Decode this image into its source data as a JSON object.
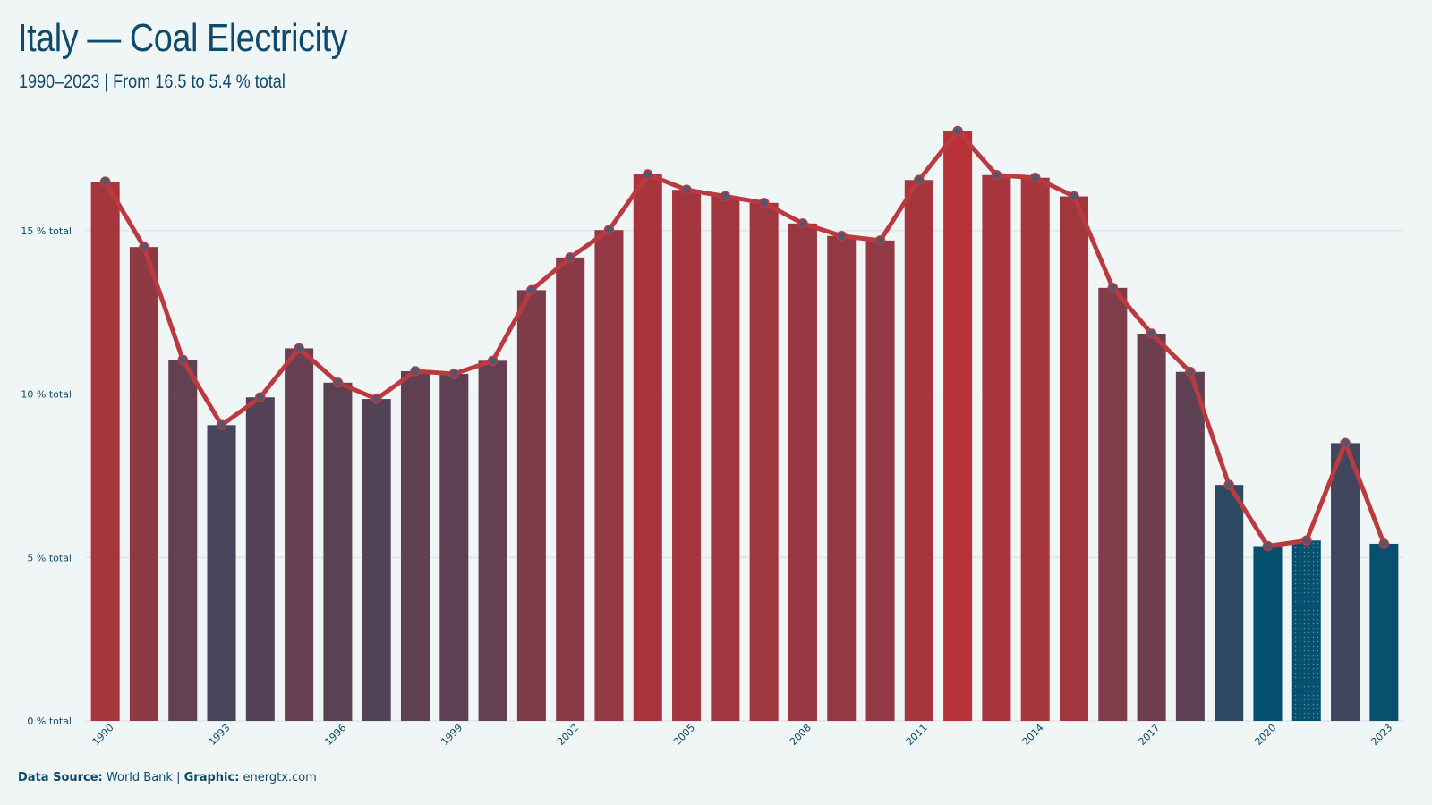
{
  "header": {
    "title": "Italy — Coal Electricity",
    "subtitle": "1990–2023 | From 16.5 to 5.4 % total"
  },
  "footer": {
    "source_label": "Data Source:",
    "source_value": "World Bank",
    "separator": "|",
    "graphic_label": "Graphic:",
    "graphic_value": "energtx.com"
  },
  "colors": {
    "high": "#b73338",
    "low": "#06506f",
    "line": "#bb3a3f",
    "marker_fill": "#56566e",
    "grid": "#d8e0e3",
    "text": "#0d4a6b"
  },
  "chart_data": {
    "type": "bar",
    "unit": "% total",
    "x": [
      1990,
      1991,
      1992,
      1993,
      1994,
      1995,
      1996,
      1997,
      1998,
      1999,
      2000,
      2001,
      2002,
      2003,
      2004,
      2005,
      2006,
      2007,
      2008,
      2009,
      2010,
      2011,
      2012,
      2013,
      2014,
      2015,
      2016,
      2017,
      2018,
      2019,
      2020,
      2021,
      2022,
      2023
    ],
    "values": [
      16.5,
      14.5,
      11.05,
      9.05,
      9.9,
      11.4,
      10.35,
      9.85,
      10.7,
      10.62,
      11.02,
      13.18,
      14.18,
      15.02,
      16.72,
      16.25,
      16.05,
      15.85,
      15.22,
      14.84,
      14.7,
      16.55,
      18.05,
      16.7,
      16.62,
      16.05,
      13.25,
      11.85,
      10.68,
      7.22,
      5.35,
      5.52,
      8.5,
      5.42
    ],
    "x_tick_labels": [
      "1990",
      "1993",
      "1996",
      "1999",
      "2002",
      "2005",
      "2008",
      "2011",
      "2014",
      "2017",
      "2020",
      "2023"
    ],
    "y_ticks": [
      0,
      5,
      10,
      15
    ],
    "y_tick_labels": [
      "0 % total",
      "5 % total",
      "10 % total",
      "15 % total"
    ],
    "ylim": [
      0,
      18.5
    ],
    "overlay": "line with circular markers over bars",
    "hatched_bar": 2021,
    "grid": true,
    "legend": "none"
  }
}
